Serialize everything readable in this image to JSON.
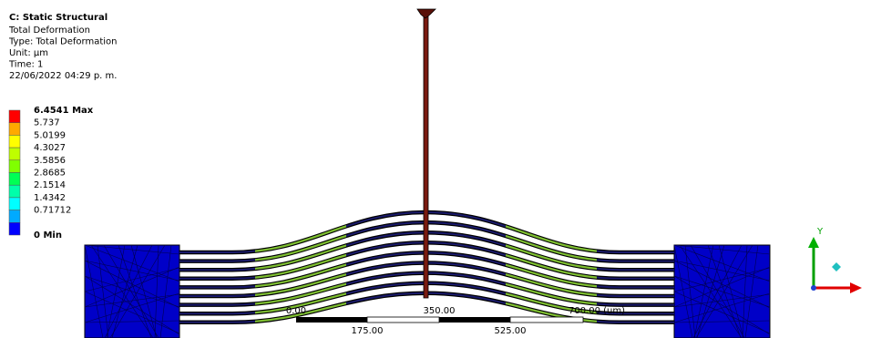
{
  "header": {
    "title": "C: Static Structural",
    "lines": [
      "Total Deformation",
      "Type: Total Deformation",
      "Unit: µm",
      "Time: 1",
      "22/06/2022 04:29 p. m."
    ]
  },
  "legend": {
    "labels": [
      "6.4541 Max",
      "5.737",
      "5.0199",
      "4.3027",
      "3.5856",
      "2.8685",
      "2.1514",
      "1.4342",
      "0.71712",
      "0 Min"
    ]
  },
  "scale_bar": {
    "top_labels": [
      "0.00",
      "350.00",
      "700.00 (um)"
    ],
    "bottom_labels": [
      "175.00",
      "525.00"
    ]
  },
  "triad": {
    "y_label": "Y"
  }
}
